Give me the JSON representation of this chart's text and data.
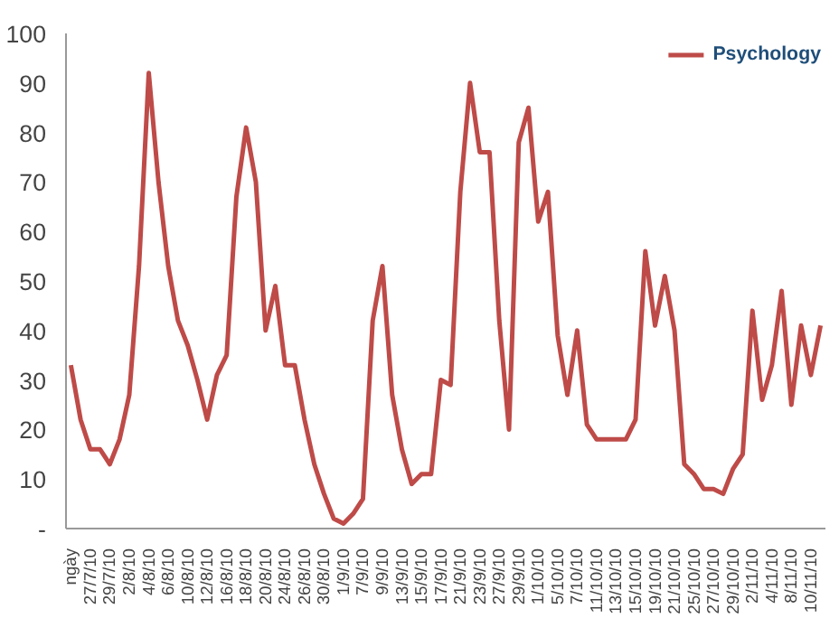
{
  "chart_data": {
    "type": "line",
    "categories": [
      "ngày",
      null,
      "27/7/10",
      null,
      "29/7/10",
      null,
      "2/8/10",
      null,
      "4/8/10",
      null,
      "6/8/10",
      null,
      "10/8/10",
      null,
      "12/8/10",
      null,
      "16/8/10",
      null,
      "18/8/10",
      null,
      "20/8/10",
      null,
      "24/8/10",
      null,
      "26/8/10",
      null,
      "30/8/10",
      null,
      "1/9/10",
      null,
      "7/9/10",
      null,
      "9/9/10",
      null,
      "13/9/10",
      null,
      "15/9/10",
      null,
      "17/9/10",
      null,
      "21/9/10",
      null,
      "23/9/10",
      null,
      "27/9/10",
      null,
      "29/9/10",
      null,
      "1/10/10",
      null,
      "5/10/10",
      null,
      "7/10/10",
      null,
      "11/10/10",
      null,
      "13/10/10",
      null,
      "15/10/10",
      null,
      "19/10/10",
      null,
      "21/10/10",
      null,
      "25/10/10",
      null,
      "27/10/10",
      null,
      "29/10/10",
      null,
      "2/11/10",
      null,
      "4/11/10",
      null,
      "8/11/10",
      null,
      "10/11/10",
      null
    ],
    "series": [
      {
        "name": "Psychology",
        "color": "#be4b48",
        "values": [
          33,
          22,
          16,
          16,
          13,
          18,
          27,
          53,
          92,
          70,
          53,
          42,
          37,
          30,
          22,
          31,
          35,
          67,
          81,
          70,
          40,
          49,
          33,
          33,
          22,
          13,
          7,
          2,
          1,
          3,
          6,
          42,
          53,
          27,
          16,
          9,
          11,
          11,
          30,
          29,
          68,
          90,
          76,
          76,
          42,
          20,
          78,
          85,
          62,
          68,
          39,
          27,
          40,
          21,
          18,
          18,
          18,
          18,
          22,
          56,
          41,
          51,
          40,
          13,
          11,
          8,
          8,
          7,
          12,
          15,
          44,
          26,
          33,
          48,
          25,
          41,
          31,
          41
        ]
      }
    ],
    "ylim": [
      0,
      100
    ],
    "yticks": [
      {
        "value": 0,
        "label": "-"
      },
      10,
      20,
      30,
      40,
      50,
      60,
      70,
      80,
      90,
      100
    ],
    "legend": "top right",
    "grid": false
  }
}
